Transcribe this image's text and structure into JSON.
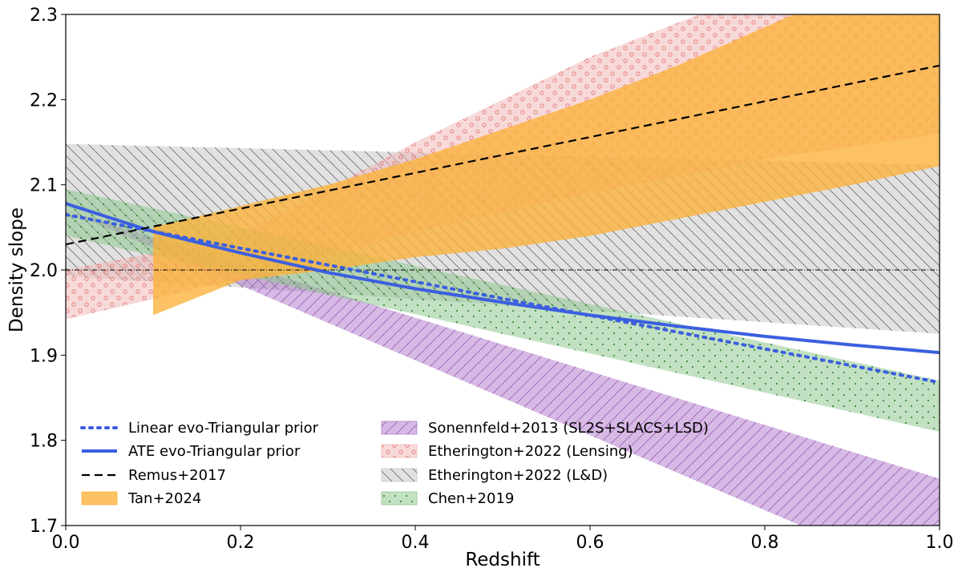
{
  "chart_data": {
    "type": "line",
    "xlabel": "Redshift",
    "ylabel": "Density slope",
    "xlim": [
      0.0,
      1.0
    ],
    "ylim": [
      1.7,
      2.3
    ],
    "xticks": [
      "0.0",
      "0.2",
      "0.4",
      "0.6",
      "0.8",
      "1.0"
    ],
    "yticks": [
      "1.7",
      "1.8",
      "1.9",
      "2.0",
      "2.1",
      "2.2",
      "2.3"
    ],
    "grid": false,
    "reference_line": {
      "y": 2.0,
      "style": "dash-dot",
      "color": "#000000"
    },
    "series": [
      {
        "name": "Linear evo-Triangular prior",
        "kind": "line",
        "style": "dotted",
        "color": "#3b5fe0",
        "x": [
          0.0,
          1.0
        ],
        "y": [
          2.065,
          1.868
        ]
      },
      {
        "name": "ATE evo-Triangular prior",
        "kind": "line",
        "style": "solid",
        "color": "#3b5fe0",
        "x": [
          0.0,
          0.1,
          0.2,
          0.3,
          0.4,
          0.5,
          0.6,
          0.7,
          0.8,
          0.9,
          1.0
        ],
        "y": [
          2.078,
          2.045,
          2.02,
          1.997,
          1.978,
          1.962,
          1.947,
          1.934,
          1.922,
          1.912,
          1.903
        ]
      },
      {
        "name": "Remus+2017",
        "kind": "line",
        "style": "dashed",
        "color": "#000000",
        "x": [
          0.0,
          1.0
        ],
        "y": [
          2.03,
          2.24
        ]
      },
      {
        "name": "Tan+2024",
        "kind": "band",
        "color": "#fbb33c",
        "hatch": "none",
        "x": [
          0.1,
          0.2,
          0.3,
          0.4,
          0.5,
          0.6,
          0.7,
          0.8,
          0.9,
          1.0
        ],
        "lower": [
          1.947,
          1.988,
          2.0,
          2.015,
          2.025,
          2.04,
          2.06,
          2.08,
          2.1,
          2.122
        ],
        "upper": [
          2.05,
          2.075,
          2.1,
          2.13,
          2.165,
          2.2,
          2.24,
          2.285,
          2.33,
          2.38
        ]
      },
      {
        "name": "Sonennfeld+2013 (SL2S+SLACS+LSD)",
        "kind": "band",
        "color": "#b57fce",
        "hatch": "diagonal",
        "x": [
          0.0,
          1.0
        ],
        "lower": [
          2.07,
          1.63
        ],
        "upper": [
          2.07,
          1.755
        ]
      },
      {
        "name": "Etherington+2022 (Lensing)",
        "kind": "band",
        "color": "#f2b9b9",
        "hatch": "circles",
        "x": [
          0.0,
          0.2,
          0.4,
          0.6,
          0.8,
          1.0
        ],
        "lower": [
          1.942,
          1.99,
          2.045,
          2.09,
          2.13,
          2.16
        ],
        "upper": [
          2.0,
          2.04,
          2.15,
          2.25,
          2.33,
          2.4
        ]
      },
      {
        "name": "Etherington+2022 (L&D)",
        "kind": "band",
        "color": "#c8c8c8",
        "hatch": "diagonal",
        "x": [
          0.0,
          1.0
        ],
        "lower": [
          1.993,
          1.925
        ],
        "upper": [
          2.148,
          2.123
        ]
      },
      {
        "name": "Chen+2019",
        "kind": "band",
        "color": "#90c890",
        "hatch": "dots",
        "x": [
          0.0,
          1.0
        ],
        "lower": [
          2.04,
          1.81
        ],
        "upper": [
          2.095,
          1.87
        ]
      }
    ]
  },
  "legend": {
    "placement": "lower-left",
    "col1": [
      "Linear evo-Triangular prior",
      "ATE evo-Triangular prior",
      "Remus+2017",
      "Tan+2024"
    ],
    "col2": [
      "Sonennfeld+2013 (SL2S+SLACS+LSD)",
      "Etherington+2022 (Lensing)",
      "Etherington+2022 (L&D)",
      "Chen+2019"
    ]
  }
}
